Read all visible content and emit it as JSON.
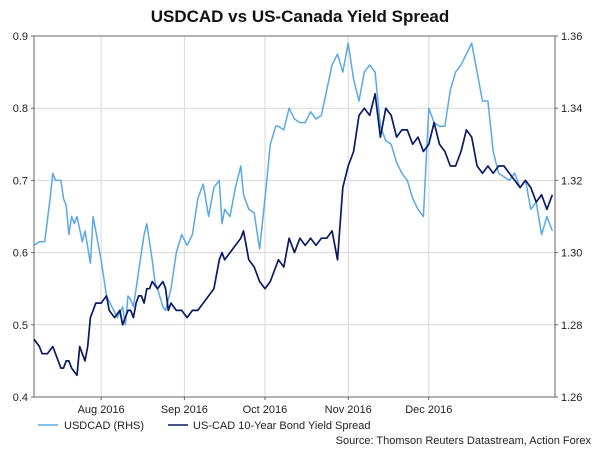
{
  "chart_data": {
    "type": "line",
    "title": "USDCAD vs US-Canada Yield Spread",
    "source": "Source: Thomson Reuters Datastream, Action Forex",
    "x_ticks": [
      "Aug 2016",
      "Sep 2016",
      "Oct 2016",
      "Nov 2016",
      "Dec 2016"
    ],
    "x_tick_days": [
      25,
      56,
      86,
      117,
      147
    ],
    "x_range_days": [
      0,
      194
    ],
    "left_axis": {
      "min": 0.4,
      "max": 0.9,
      "ticks": [
        "0.4",
        "0.5",
        "0.6",
        "0.7",
        "0.8",
        "0.9"
      ]
    },
    "right_axis": {
      "min": 1.26,
      "max": 1.36,
      "ticks": [
        "1.26",
        "1.28",
        "1.30",
        "1.32",
        "1.34",
        "1.36"
      ]
    },
    "series": [
      {
        "name": "USDCAD (RHS)",
        "axis": "right",
        "color": "#5aa8e6",
        "x": [
          0,
          2,
          4,
          6,
          7,
          8,
          10,
          11,
          12,
          13,
          14,
          15,
          16,
          18,
          19,
          21,
          22,
          25,
          27,
          29,
          31,
          33,
          34,
          35,
          36,
          37,
          38,
          40,
          41,
          42,
          44,
          45,
          46,
          48,
          49,
          51,
          53,
          55,
          57,
          59,
          61,
          63,
          65,
          67,
          69,
          70,
          71,
          73,
          75,
          77,
          78,
          80,
          82,
          84,
          86,
          88,
          90,
          91,
          93,
          95,
          97,
          99,
          101,
          103,
          105,
          107,
          109,
          111,
          113,
          115,
          117,
          119,
          121,
          123,
          125,
          127,
          129,
          131,
          133,
          135,
          137,
          139,
          141,
          143,
          145,
          147,
          149,
          151,
          153,
          155,
          157,
          159,
          161,
          163,
          165,
          167,
          169,
          171,
          173,
          175,
          177,
          179,
          181,
          183,
          185,
          187,
          189,
          191,
          193
        ],
        "y": [
          1.302,
          1.303,
          1.303,
          1.315,
          1.322,
          1.32,
          1.32,
          1.315,
          1.313,
          1.305,
          1.31,
          1.308,
          1.31,
          1.303,
          1.306,
          1.297,
          1.31,
          1.298,
          1.288,
          1.285,
          1.282,
          1.285,
          1.28,
          1.288,
          1.287,
          1.285,
          1.29,
          1.3,
          1.305,
          1.308,
          1.298,
          1.292,
          1.29,
          1.285,
          1.284,
          1.29,
          1.3,
          1.305,
          1.302,
          1.305,
          1.315,
          1.319,
          1.31,
          1.318,
          1.32,
          1.308,
          1.312,
          1.31,
          1.318,
          1.324,
          1.316,
          1.312,
          1.311,
          1.301,
          1.315,
          1.33,
          1.335,
          1.335,
          1.334,
          1.34,
          1.337,
          1.336,
          1.336,
          1.339,
          1.337,
          1.338,
          1.345,
          1.352,
          1.355,
          1.35,
          1.358,
          1.348,
          1.342,
          1.35,
          1.352,
          1.35,
          1.335,
          1.331,
          1.33,
          1.325,
          1.322,
          1.32,
          1.315,
          1.312,
          1.31,
          1.34,
          1.336,
          1.335,
          1.335,
          1.345,
          1.35,
          1.352,
          1.355,
          1.358,
          1.35,
          1.342,
          1.342,
          1.328,
          1.322,
          1.321,
          1.32,
          1.322,
          1.318,
          1.32,
          1.312,
          1.314,
          1.305,
          1.31,
          1.306
        ]
      },
      {
        "name": "US-CAD 10-Year Bond Yield Spread",
        "axis": "left",
        "color": "#0b1a66",
        "x": [
          0,
          2,
          3,
          5,
          7,
          8,
          10,
          11,
          12,
          13,
          14,
          16,
          17,
          18,
          19,
          20,
          21,
          22,
          23,
          25,
          27,
          28,
          30,
          32,
          33,
          34,
          35,
          36,
          37,
          38,
          39,
          40,
          41,
          42,
          43,
          44,
          46,
          48,
          49,
          50,
          51,
          53,
          55,
          57,
          59,
          61,
          63,
          65,
          67,
          69,
          70,
          71,
          73,
          75,
          77,
          78,
          80,
          82,
          84,
          86,
          88,
          90,
          91,
          93,
          95,
          97,
          99,
          101,
          103,
          105,
          107,
          109,
          111,
          113,
          115,
          117,
          119,
          121,
          123,
          125,
          127,
          129,
          131,
          133,
          135,
          137,
          139,
          141,
          143,
          145,
          147,
          149,
          151,
          153,
          155,
          157,
          159,
          161,
          163,
          165,
          167,
          169,
          171,
          173,
          175,
          177,
          179,
          181,
          183,
          185,
          187,
          189,
          191,
          193
        ],
        "y": [
          0.48,
          0.47,
          0.46,
          0.46,
          0.47,
          0.46,
          0.44,
          0.44,
          0.45,
          0.45,
          0.44,
          0.43,
          0.47,
          0.46,
          0.45,
          0.47,
          0.51,
          0.52,
          0.53,
          0.53,
          0.54,
          0.52,
          0.51,
          0.52,
          0.5,
          0.51,
          0.52,
          0.52,
          0.51,
          0.53,
          0.54,
          0.54,
          0.53,
          0.55,
          0.55,
          0.56,
          0.55,
          0.56,
          0.55,
          0.52,
          0.53,
          0.52,
          0.52,
          0.51,
          0.52,
          0.52,
          0.53,
          0.54,
          0.55,
          0.59,
          0.6,
          0.59,
          0.6,
          0.61,
          0.62,
          0.63,
          0.59,
          0.58,
          0.56,
          0.55,
          0.56,
          0.58,
          0.59,
          0.58,
          0.62,
          0.6,
          0.62,
          0.61,
          0.62,
          0.61,
          0.62,
          0.62,
          0.63,
          0.59,
          0.69,
          0.72,
          0.74,
          0.79,
          0.8,
          0.79,
          0.82,
          0.76,
          0.8,
          0.79,
          0.76,
          0.77,
          0.77,
          0.75,
          0.76,
          0.74,
          0.75,
          0.78,
          0.75,
          0.74,
          0.72,
          0.72,
          0.74,
          0.77,
          0.76,
          0.72,
          0.71,
          0.72,
          0.71,
          0.72,
          0.72,
          0.71,
          0.7,
          0.69,
          0.7,
          0.69,
          0.67,
          0.68,
          0.66,
          0.68
        ]
      }
    ],
    "legend_position": "bottom-left"
  }
}
